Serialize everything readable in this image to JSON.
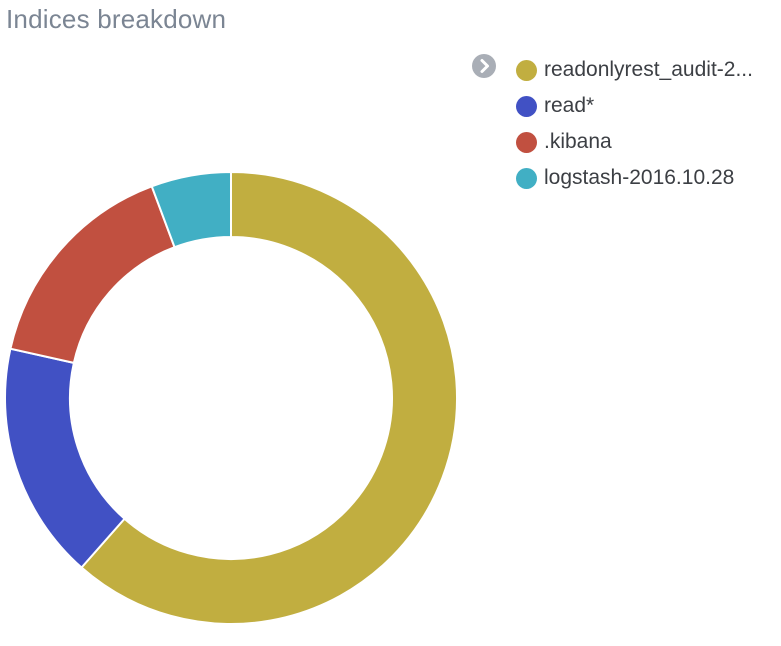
{
  "panel": {
    "title": "Indices breakdown"
  },
  "legend": {
    "toggle_icon": "chevron-right-icon",
    "items": [
      {
        "label": "readonlyrest_audit-2...",
        "color": "#c1ae40"
      },
      {
        "label": "read*",
        "color": "#4151c4"
      },
      {
        "label": ".kibana",
        "color": "#c15040"
      },
      {
        "label": "logstash-2016.10.28",
        "color": "#41afc4"
      }
    ]
  },
  "chart_data": {
    "type": "pie",
    "donut": true,
    "title": "Indices breakdown",
    "legend_position": "top-right",
    "slices": [
      {
        "label": "readonlyrest_audit-2...",
        "value": 61.5,
        "color": "#c1ae40"
      },
      {
        "label": "read*",
        "value": 17.0,
        "color": "#4151c4"
      },
      {
        "label": ".kibana",
        "value": 15.8,
        "color": "#c15040"
      },
      {
        "label": "logstash-2016.10.28",
        "value": 5.7,
        "color": "#41afc4"
      }
    ]
  }
}
